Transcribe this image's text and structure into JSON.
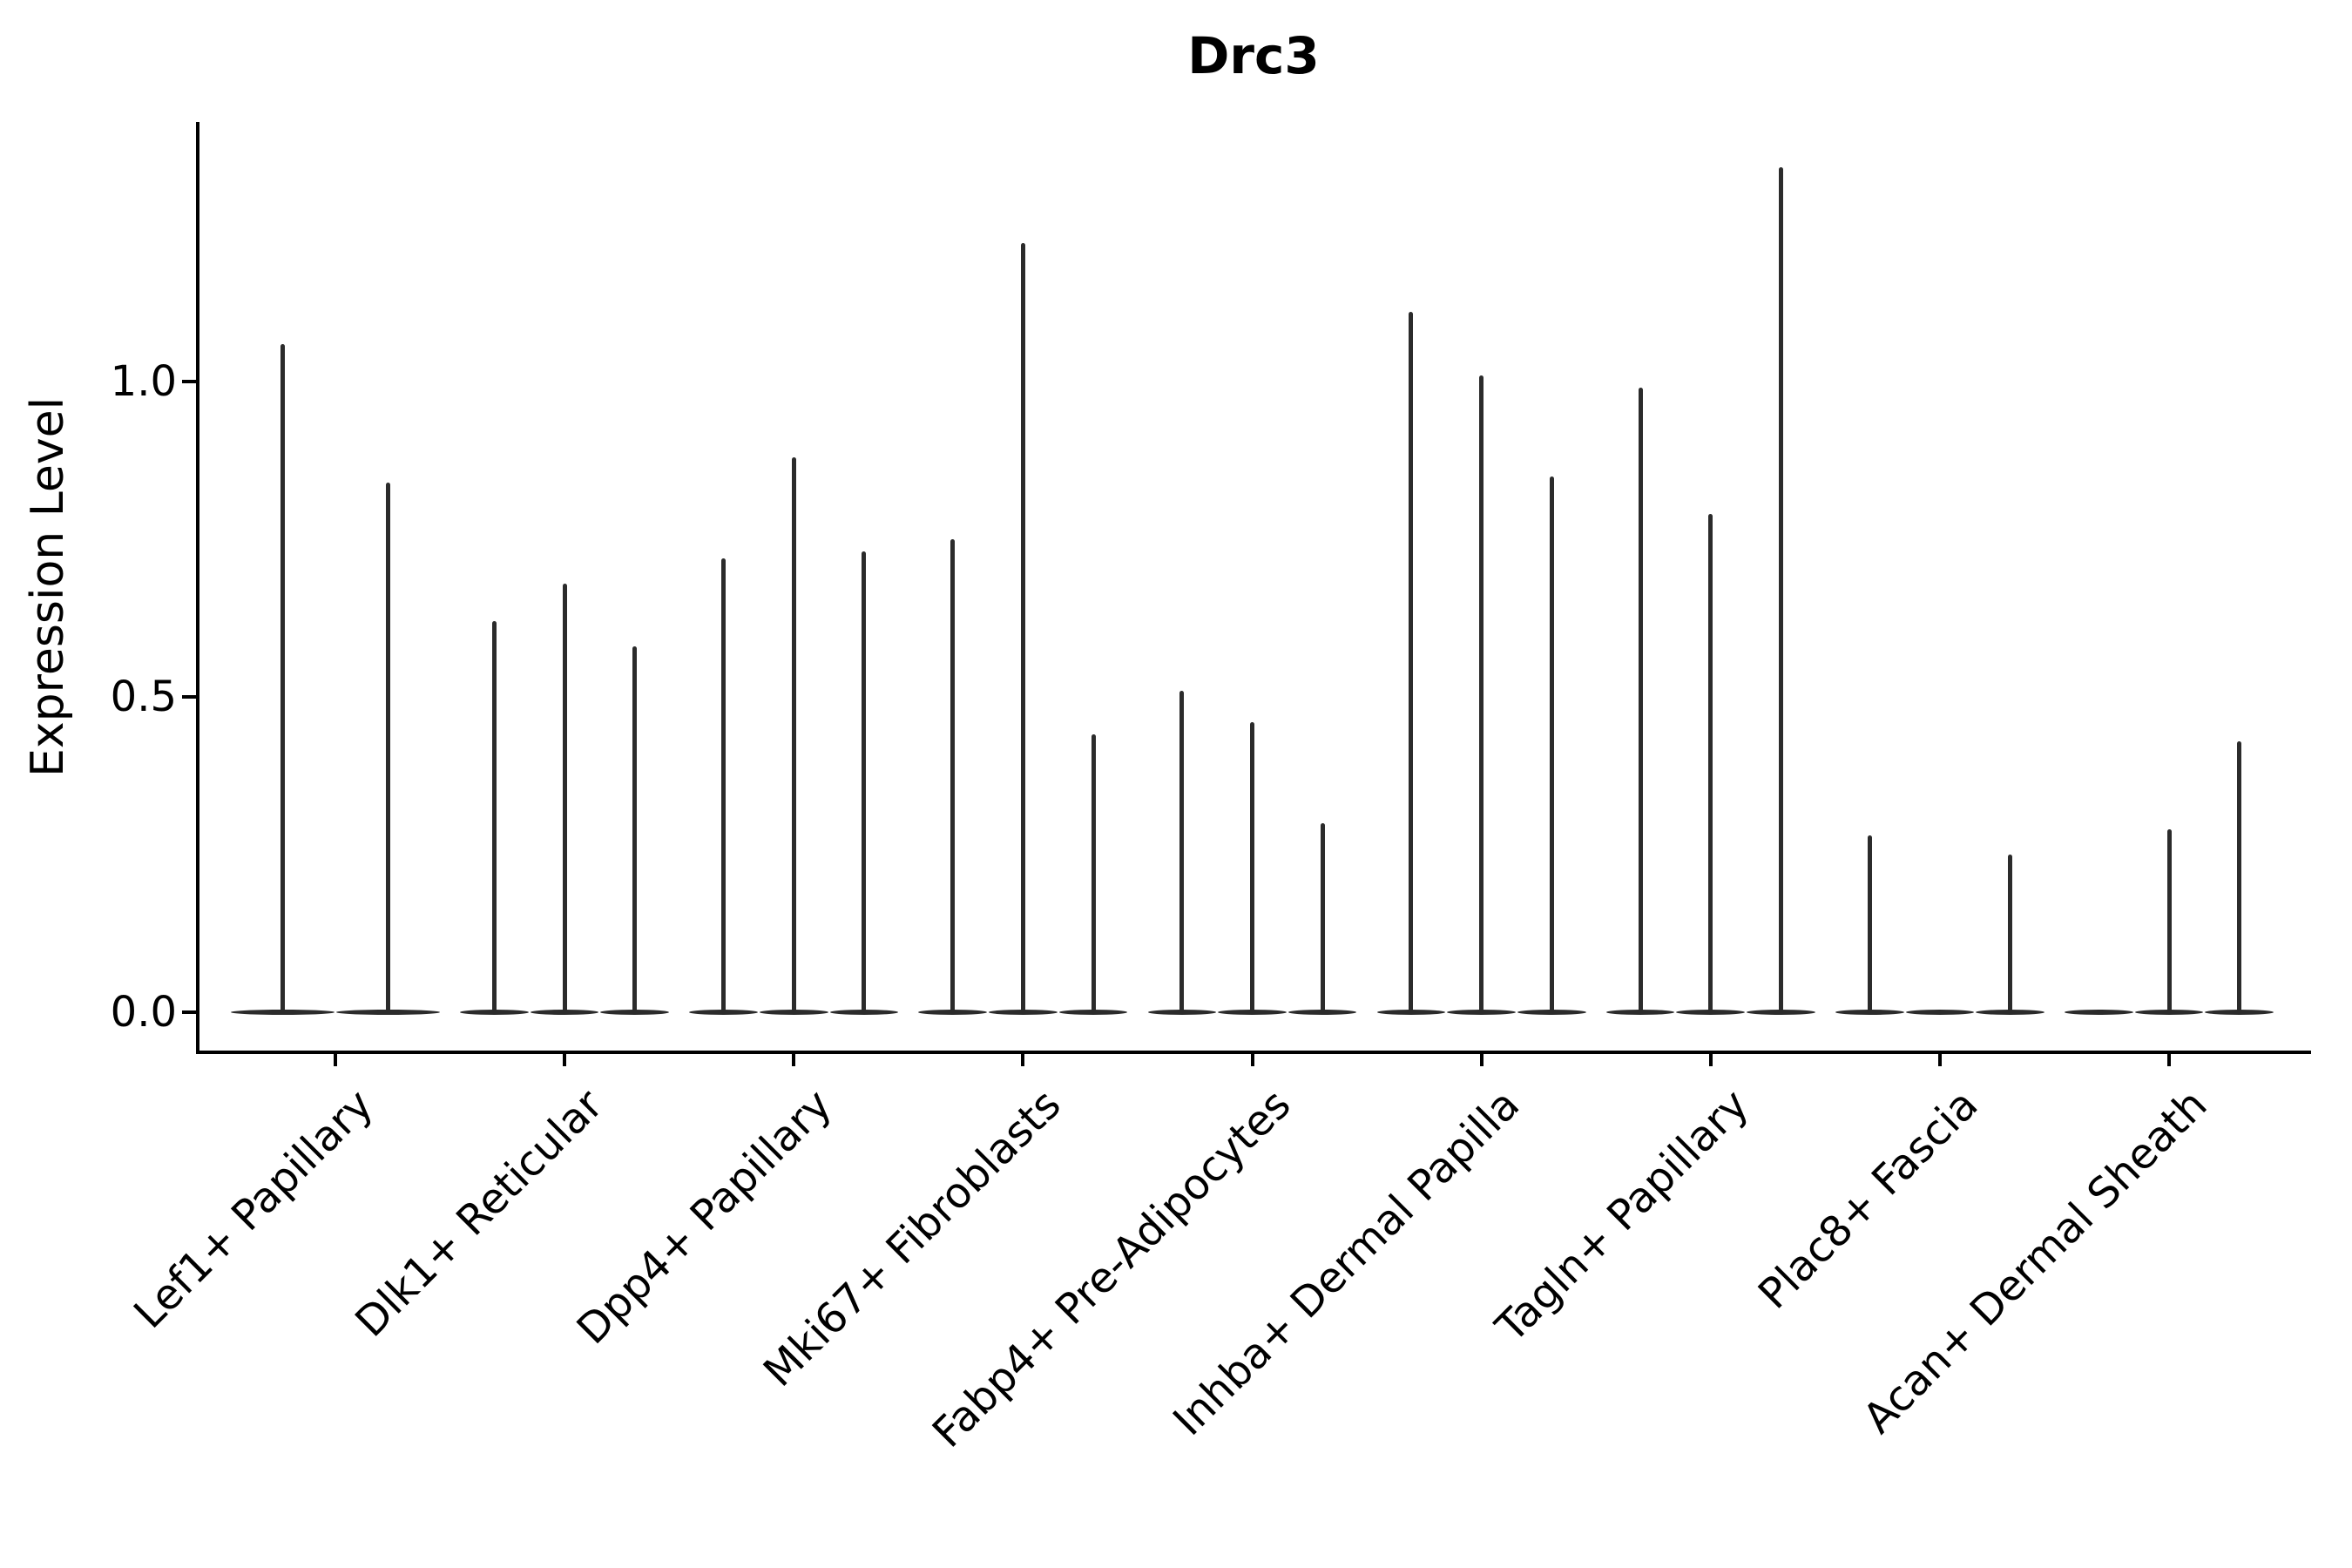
{
  "chart_data": {
    "type": "violin",
    "title": "Drc3",
    "ylabel": "Expression Level",
    "xlabel": "",
    "yticks": [
      0.0,
      0.5,
      1.0
    ],
    "yticklabels": [
      "0.0",
      "0.5",
      "1.0"
    ],
    "ylim": [
      -0.064,
      1.41
    ],
    "grid": "off",
    "legend": "none",
    "categories": [
      "Lef1+ Papillary",
      "Dlk1+ Reticular",
      "Dpp4+ Papillary",
      "Mki67+ Fibroblasts",
      "Fabp4+ Pre-Adipocytes",
      "Inhba+ Dermal Papilla",
      "Tagln+ Papillary",
      "Plac8+ Fascia",
      "Acan+ Dermal Sheath"
    ],
    "groups": [
      {
        "label": "Lef1+ Papillary",
        "violins": [
          1.06,
          0.84
        ]
      },
      {
        "label": "Dlk1+ Reticular",
        "violins": [
          0.62,
          0.68,
          0.58
        ]
      },
      {
        "label": "Dpp4+ Papillary",
        "violins": [
          0.72,
          0.88,
          0.73
        ]
      },
      {
        "label": "Mki67+ Fibroblasts",
        "violins": [
          0.75,
          1.22,
          0.44
        ]
      },
      {
        "label": "Fabp4+ Pre-Adipocytes",
        "violins": [
          0.51,
          0.46,
          0.3
        ]
      },
      {
        "label": "Inhba+ Dermal Papilla",
        "violins": [
          1.11,
          1.01,
          0.85
        ]
      },
      {
        "label": "Tagln+ Papillary",
        "violins": [
          0.99,
          0.79,
          1.34
        ]
      },
      {
        "label": "Plac8+ Fascia",
        "violins": [
          0.28,
          0.0,
          0.25
        ]
      },
      {
        "label": "Acan+ Dermal Sheath",
        "violins": [
          0.0,
          0.29,
          0.43
        ]
      }
    ],
    "colors": {
      "ink": "#2b2b2b",
      "axis": "#000000",
      "background": "#ffffff"
    }
  }
}
